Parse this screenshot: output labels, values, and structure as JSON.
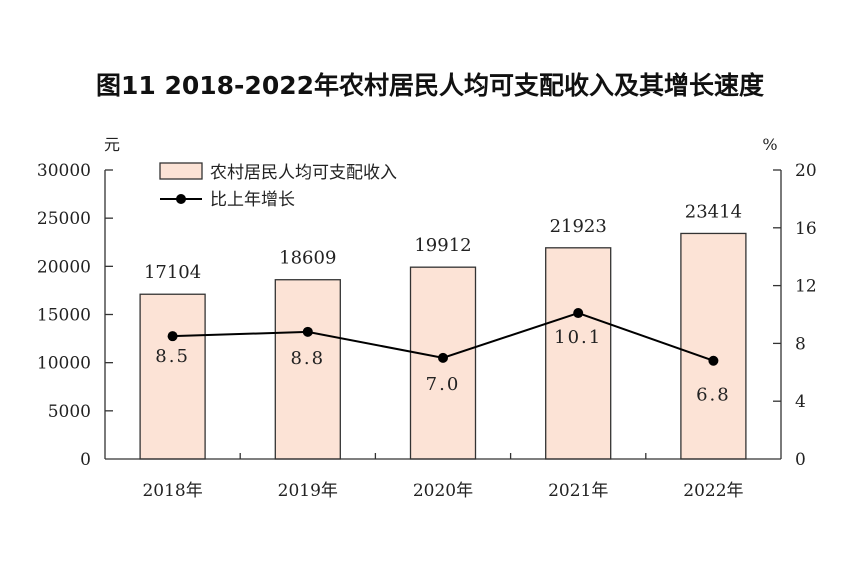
{
  "chart_data": {
    "type": "bar",
    "title": "图11 2018-2022年农村居民人均可支配收入及其增长速度",
    "categories": [
      "2018年",
      "2019年",
      "2020年",
      "2021年",
      "2022年"
    ],
    "series": [
      {
        "name": "农村居民人均可支配收入",
        "type": "bar",
        "axis": "left",
        "values": [
          17104,
          18609,
          19912,
          21923,
          23414
        ],
        "labels": [
          "17104",
          "18609",
          "19912",
          "21923",
          "23414"
        ],
        "color": "#fce3d6"
      },
      {
        "name": "比上年增长",
        "type": "line",
        "axis": "right",
        "values": [
          8.5,
          8.8,
          7.0,
          10.1,
          6.8
        ],
        "labels": [
          "8.5",
          "8.8",
          "7.0",
          "10.1",
          "6.8"
        ],
        "color": "#000000"
      }
    ],
    "left_axis": {
      "unit": "元",
      "ylim": [
        0,
        30000
      ],
      "ticks": [
        "0",
        "5000",
        "10000",
        "15000",
        "20000",
        "25000",
        "30000"
      ]
    },
    "right_axis": {
      "unit": "%",
      "ylim": [
        0,
        20
      ],
      "ticks": [
        "0",
        "4",
        "8",
        "12",
        "16",
        "20"
      ]
    },
    "legend": {
      "position": "top-left",
      "entries": [
        "农村居民人均可支配收入",
        "比上年增长"
      ]
    },
    "grid": false
  }
}
